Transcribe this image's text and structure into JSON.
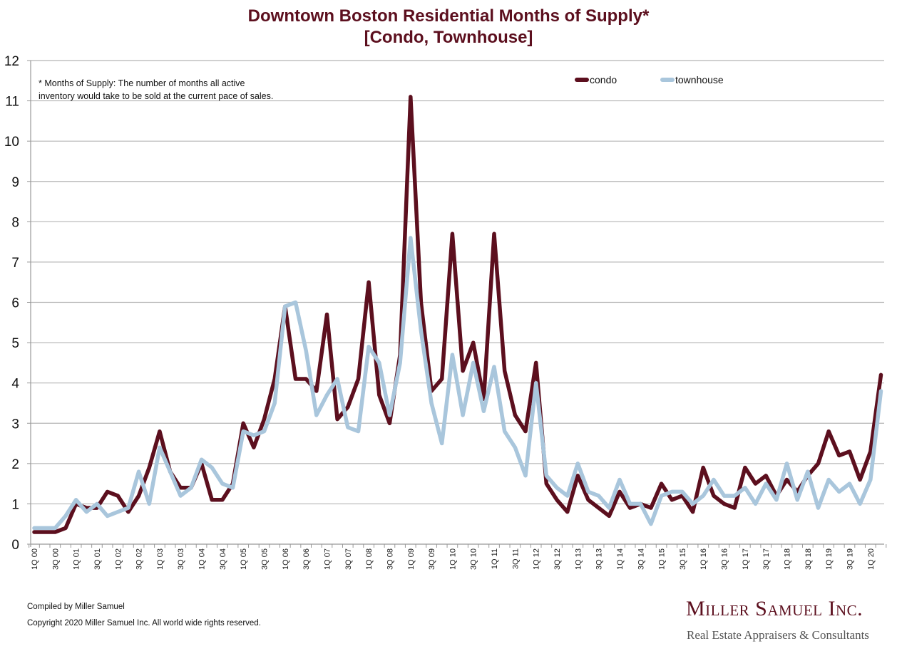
{
  "chart_data": {
    "type": "line",
    "title": "Downtown Boston Residential Months of Supply*",
    "subtitle": "[Condo, Townhouse]",
    "xlabel": "",
    "ylabel": "",
    "ylim": [
      0,
      12
    ],
    "yticks": [
      "0",
      "1",
      "2",
      "3",
      "4",
      "5",
      "6",
      "7",
      "8",
      "9",
      "10",
      "11",
      "12"
    ],
    "grid": true,
    "legend_position": "top-right",
    "annotation": [
      "* Months of Supply: The number of months all active",
      "inventory would take to be sold at the current pace of sales."
    ],
    "x": [
      "1Q 00",
      "2Q 00",
      "3Q 00",
      "4Q 00",
      "1Q 01",
      "2Q 01",
      "3Q 01",
      "4Q 01",
      "1Q 02",
      "2Q 02",
      "3Q 02",
      "4Q 02",
      "1Q 03",
      "2Q 03",
      "3Q 03",
      "4Q 03",
      "1Q 04",
      "2Q 04",
      "3Q 04",
      "4Q 04",
      "1Q 05",
      "2Q 05",
      "3Q 05",
      "4Q 05",
      "1Q 06",
      "2Q 06",
      "3Q 06",
      "4Q 06",
      "1Q 07",
      "2Q 07",
      "3Q 07",
      "4Q 07",
      "1Q 08",
      "2Q 08",
      "3Q 08",
      "4Q 08",
      "1Q 09",
      "2Q 09",
      "3Q 09",
      "4Q 09",
      "1Q 10",
      "2Q 10",
      "3Q 10",
      "4Q 10",
      "1Q 11",
      "2Q 11",
      "3Q 11",
      "4Q 11",
      "1Q 12",
      "2Q 12",
      "3Q 12",
      "4Q 12",
      "1Q 13",
      "2Q 13",
      "3Q 13",
      "4Q 13",
      "1Q 14",
      "2Q 14",
      "3Q 14",
      "4Q 14",
      "1Q 15",
      "2Q 15",
      "3Q 15",
      "4Q 15",
      "1Q 16",
      "2Q 16",
      "3Q 16",
      "4Q 16",
      "1Q 17",
      "2Q 17",
      "3Q 17",
      "4Q 17",
      "1Q 18",
      "2Q 18",
      "3Q 18",
      "4Q 18",
      "1Q 19",
      "2Q 19",
      "3Q 19",
      "4Q 19",
      "1Q 20",
      "2Q 20"
    ],
    "xtick_labels_every": 2,
    "series": [
      {
        "name": "condo",
        "color": "#5c0f1e",
        "values": [
          0.3,
          0.3,
          0.3,
          0.4,
          1.0,
          0.9,
          0.9,
          1.3,
          1.2,
          0.8,
          1.2,
          1.9,
          2.8,
          1.8,
          1.4,
          1.4,
          2.0,
          1.1,
          1.1,
          1.5,
          3.0,
          2.4,
          3.1,
          4.1,
          5.9,
          4.1,
          4.1,
          3.8,
          5.7,
          3.1,
          3.4,
          4.1,
          6.5,
          3.7,
          3.0,
          4.7,
          11.1,
          6.0,
          3.8,
          4.1,
          7.7,
          4.3,
          5.0,
          3.6,
          7.7,
          4.3,
          3.2,
          2.8,
          4.5,
          1.5,
          1.1,
          0.8,
          1.7,
          1.1,
          0.9,
          0.7,
          1.3,
          0.9,
          1.0,
          0.9,
          1.5,
          1.1,
          1.2,
          0.8,
          1.9,
          1.2,
          1.0,
          0.9,
          1.9,
          1.5,
          1.7,
          1.2,
          1.6,
          1.3,
          1.7,
          2.0,
          2.8,
          2.2,
          2.3,
          1.6,
          2.3,
          4.2
        ]
      },
      {
        "name": "townhouse",
        "color": "#a9c6dc",
        "values": [
          0.4,
          0.4,
          0.4,
          0.7,
          1.1,
          0.8,
          1.0,
          0.7,
          0.8,
          0.9,
          1.8,
          1.0,
          2.4,
          1.8,
          1.2,
          1.4,
          2.1,
          1.9,
          1.5,
          1.4,
          2.8,
          2.7,
          2.8,
          3.5,
          5.9,
          6.0,
          4.8,
          3.2,
          3.7,
          4.1,
          2.9,
          2.8,
          4.9,
          4.5,
          3.2,
          4.5,
          7.6,
          5.3,
          3.5,
          2.5,
          4.7,
          3.2,
          4.5,
          3.3,
          4.4,
          2.8,
          2.4,
          1.7,
          4.0,
          1.7,
          1.4,
          1.2,
          2.0,
          1.3,
          1.2,
          0.9,
          1.6,
          1.0,
          1.0,
          0.5,
          1.2,
          1.3,
          1.3,
          1.0,
          1.2,
          1.6,
          1.2,
          1.2,
          1.4,
          1.0,
          1.5,
          1.1,
          2.0,
          1.1,
          1.8,
          0.9,
          1.6,
          1.3,
          1.5,
          1.0,
          1.6,
          3.8
        ]
      }
    ]
  },
  "footer": {
    "compiled": "Compiled by Miller Samuel",
    "copyright": "Copyright 2020 Miller Samuel Inc.  All world wide rights reserved."
  },
  "logo": {
    "name": "Miller Samuel Inc.",
    "tagline": "Real Estate Appraisers & Consultants"
  }
}
